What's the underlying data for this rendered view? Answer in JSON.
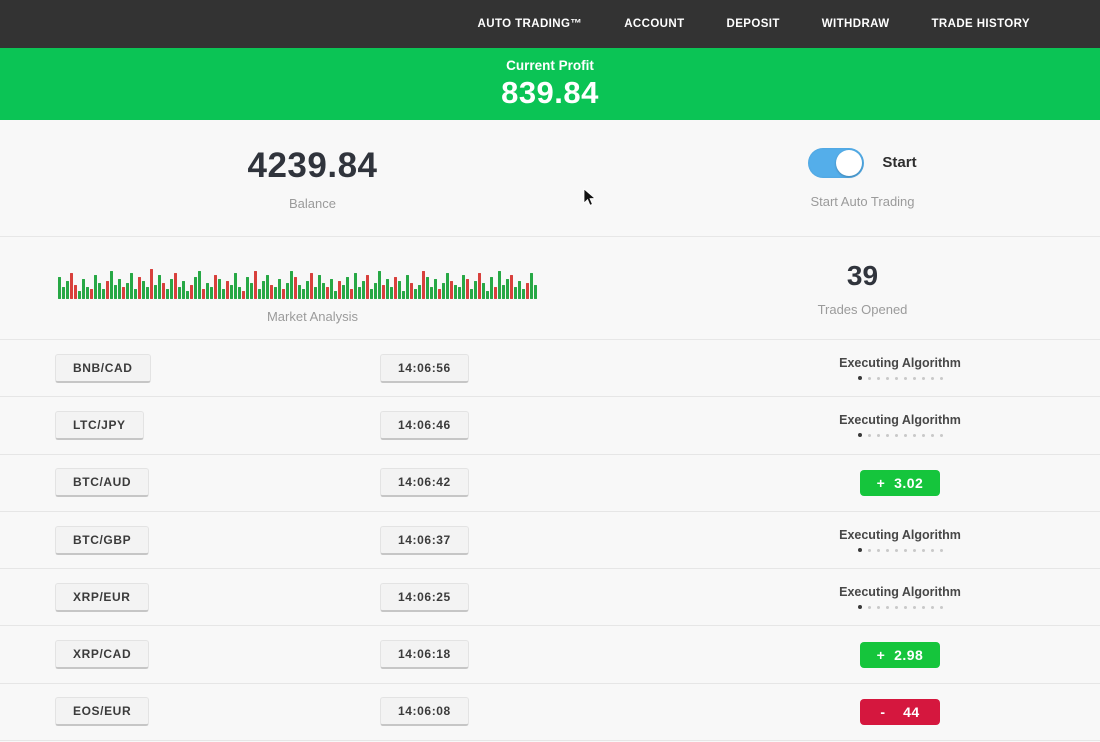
{
  "nav": {
    "items": [
      {
        "id": "auto-trading",
        "label": "AUTO TRADING™"
      },
      {
        "id": "account",
        "label": "ACCOUNT"
      },
      {
        "id": "deposit",
        "label": "DEPOSIT"
      },
      {
        "id": "withdraw",
        "label": "WITHDRAW"
      },
      {
        "id": "trade-history",
        "label": "TRADE HISTORY"
      }
    ]
  },
  "banner": {
    "label": "Current Profit",
    "value": "839.84"
  },
  "stats": {
    "balance_value": "4239.84",
    "balance_label": "Balance",
    "toggle_label": "Start",
    "toggle_caption": "Start Auto Trading",
    "toggle_on": true,
    "market_label": "Market Analysis",
    "trades_opened_value": "39",
    "trades_opened_label": "Trades Opened"
  },
  "chart_data": {
    "type": "bar",
    "title": "Market Analysis",
    "xlabel": "",
    "ylabel": "",
    "legend": false,
    "axes": false,
    "description": "decorative strip of green/red market bars, bottom-aligned",
    "bars": "g22 g12 g18 r26 r14 g8 g20 g12 r10 g24 g16 g10 r18 g28 g14 g20 r12 g16 g26 g10 r22 g18 g12 r30 g14 g24 r16 g10 g20 r26 g12 g18 g8 r14 g22 g28 r10 g16 g12 r24 g20 g10 r18 g14 g26 g12 r8 g22 g16 r28 g10 g18 g24 r14 g12 g20 r10 g16 g28 r22 g14 g10 g18 r26 g12 g24 g16 r12 g20 g8 r18 g14 g22 r10 g26 g12 g18 r24 g10 g16 g28 r14 g20 g12 r22 g18 g8 g24 r16 g10 g14 r28 g22 g12 g20 r10 g16 g26 r18 g14 g12 g24 r20 g10 g18 r26 g16 g8 g22 r12 g28 g14 g20 r24 g12 g18 g10 r16 g26 g14",
    "bar_colors": {
      "g": "#27a845",
      "r": "#d8403c"
    }
  },
  "trades": {
    "executing_label": "Executing Algorithm",
    "rows": [
      {
        "pair": "BNB/CAD",
        "time": "14:06:56",
        "status": "executing",
        "value": ""
      },
      {
        "pair": "LTC/JPY",
        "time": "14:06:46",
        "status": "executing",
        "value": ""
      },
      {
        "pair": "BTC/AUD",
        "time": "14:06:42",
        "status": "profit",
        "value": "+  3.02"
      },
      {
        "pair": "BTC/GBP",
        "time": "14:06:37",
        "status": "executing",
        "value": ""
      },
      {
        "pair": "XRP/EUR",
        "time": "14:06:25",
        "status": "executing",
        "value": ""
      },
      {
        "pair": "XRP/CAD",
        "time": "14:06:18",
        "status": "profit",
        "value": "+  2.98"
      },
      {
        "pair": "EOS/EUR",
        "time": "14:06:08",
        "status": "loss",
        "value": "-    44"
      }
    ]
  },
  "colors": {
    "navbar_bg": "#333333",
    "banner_green": "#0bc455",
    "profit_green": "#15c53c",
    "loss_red": "#d5173e",
    "toggle_blue": "#54aeea"
  }
}
